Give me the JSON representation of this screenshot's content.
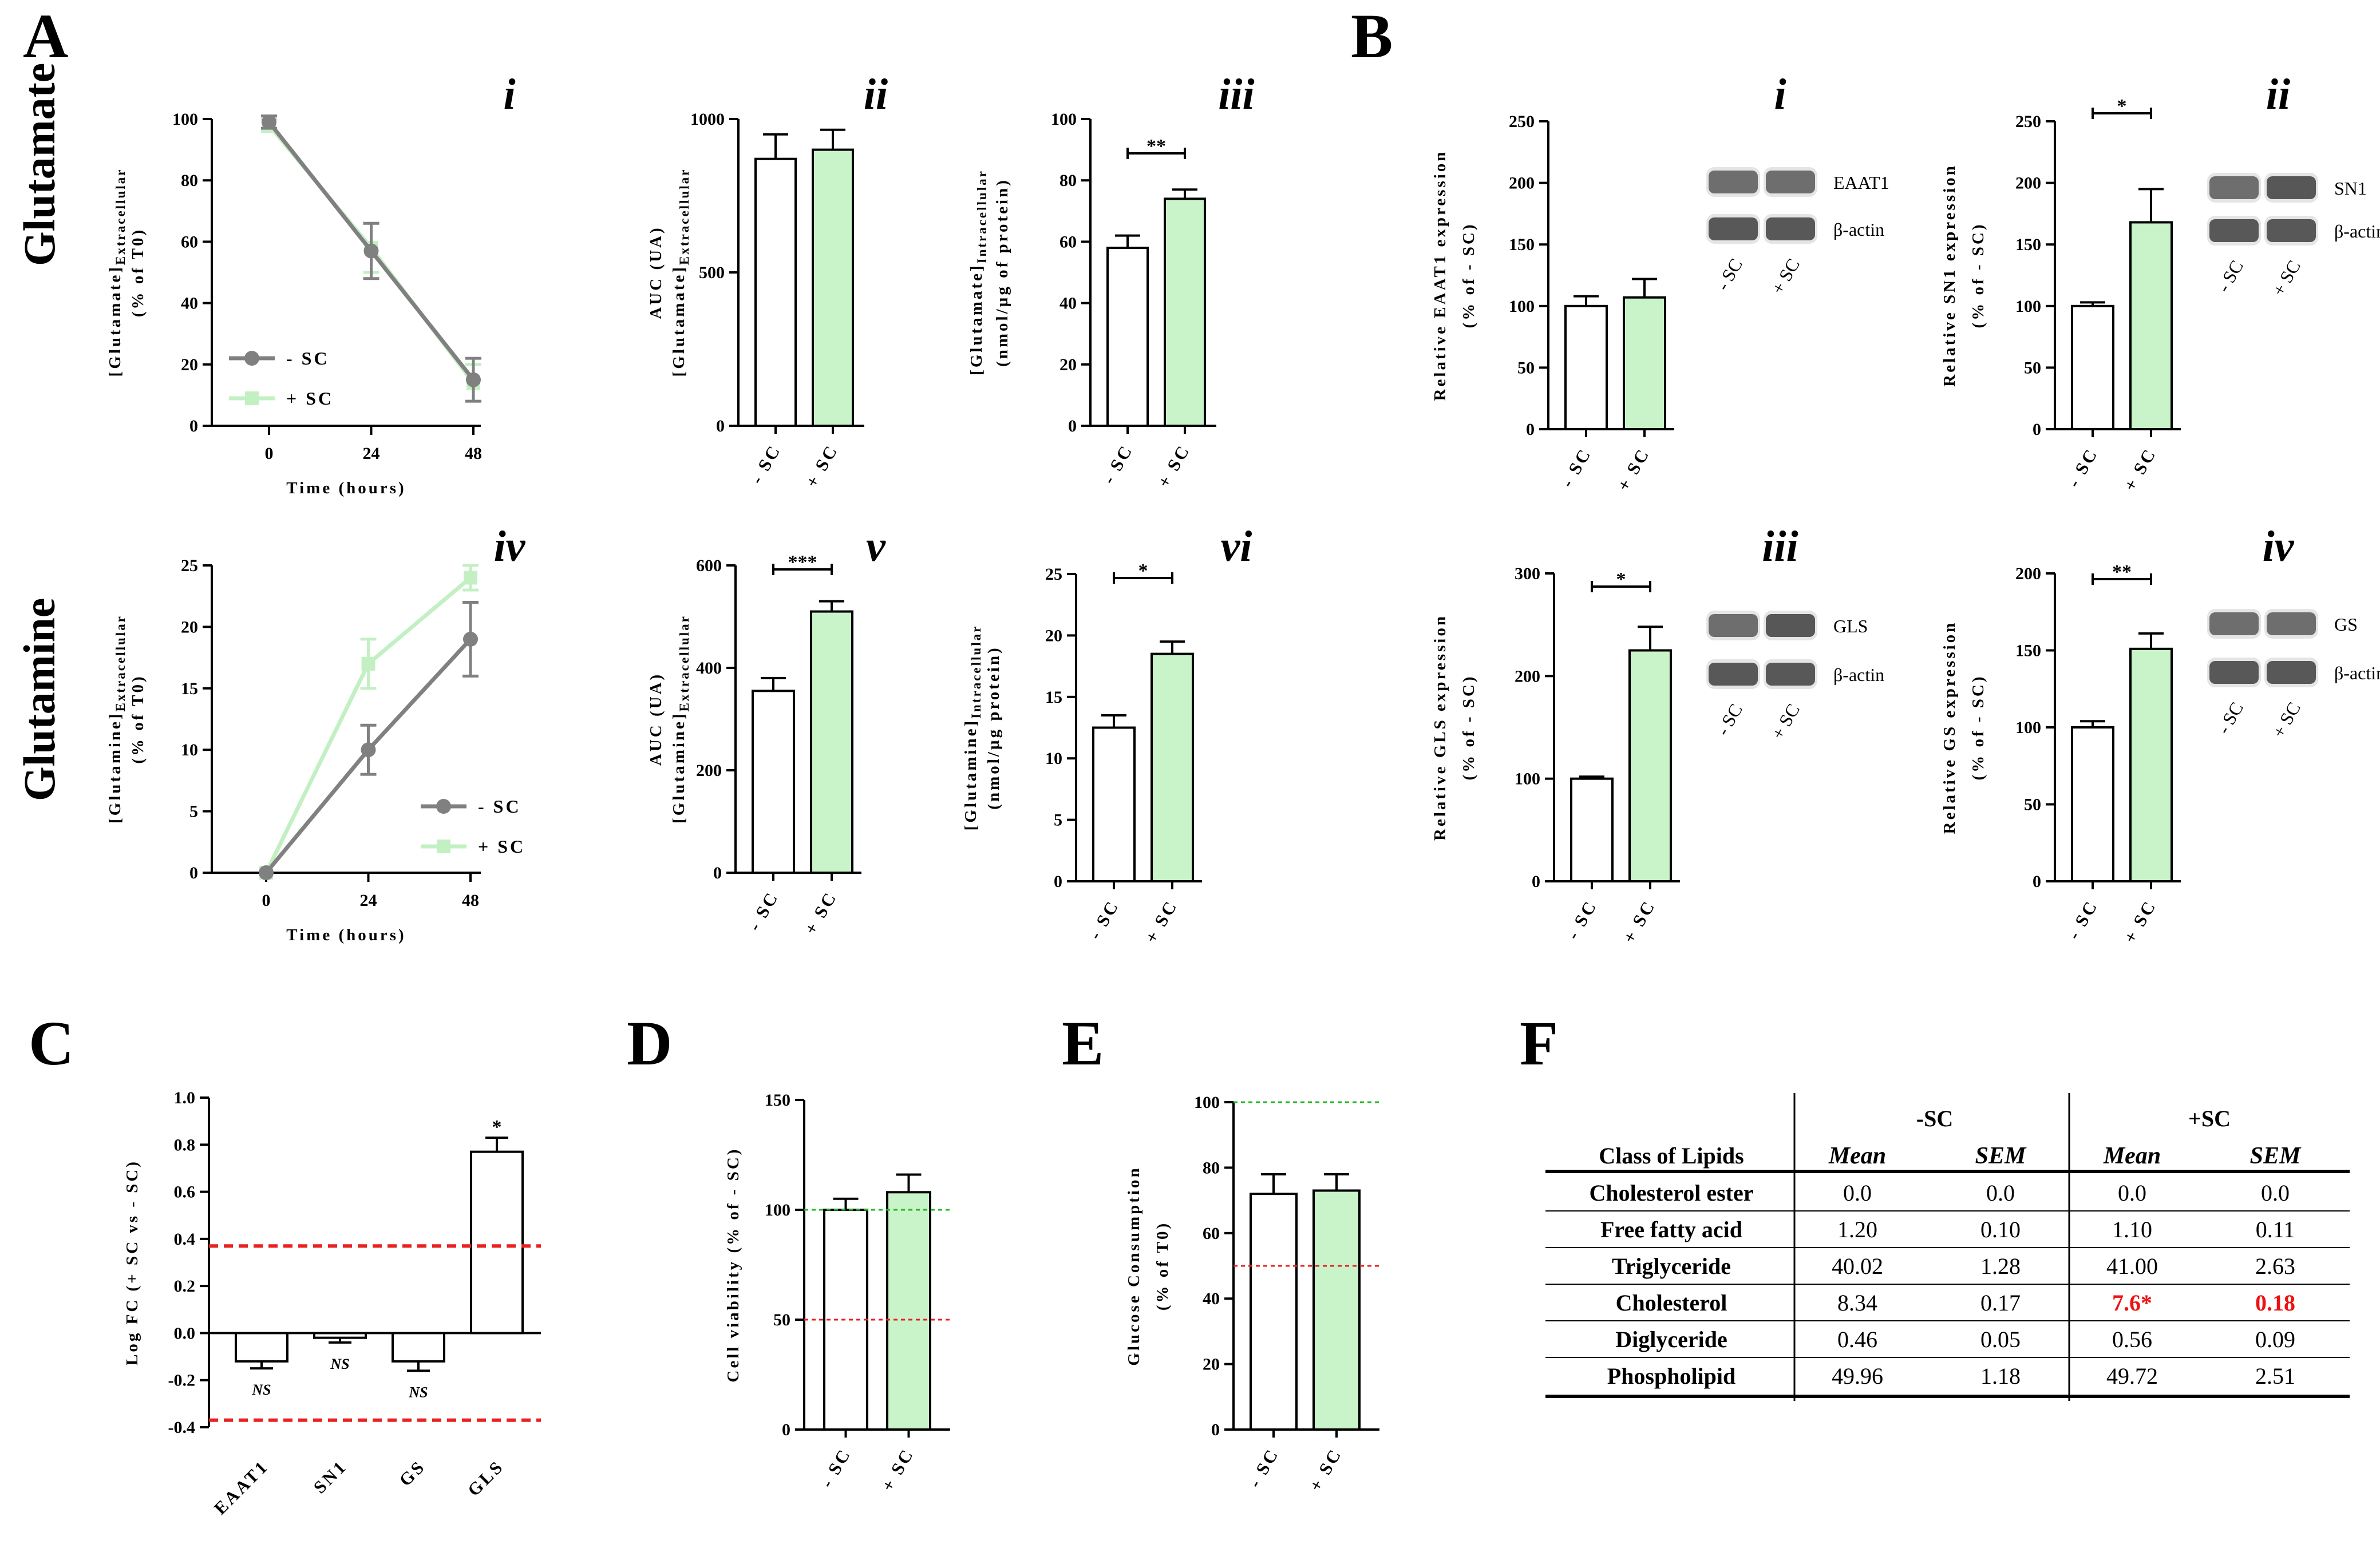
{
  "figure": {
    "panel_letters": [
      "A",
      "B",
      "C",
      "D",
      "E",
      "F"
    ],
    "row_titles": [
      "Glutamate",
      "Glutamine"
    ]
  },
  "colors": {
    "minus_sc": "#808080",
    "plus_sc": "#c3f0c3",
    "bar_plus": "#c9f3c9",
    "ref_red": "#e82020",
    "ref_green": "#22b822",
    "table_red": "#ee1111"
  },
  "chart_data": [
    {
      "id": "A-i",
      "type": "line",
      "roman": "i",
      "x": [
        0,
        24,
        48
      ],
      "series": [
        {
          "name": "- SC",
          "values": [
            99,
            57,
            15
          ],
          "errors": [
            2,
            9,
            7
          ]
        },
        {
          "name": "+ SC",
          "values": [
            98,
            58,
            14
          ],
          "errors": [
            2,
            8,
            6
          ]
        }
      ],
      "xlabel": "Time (hours)",
      "ylabel_main": "[Glutamate]",
      "ylabel_sub": "Extracellular",
      "ylabel_line2": "(% of T0)",
      "ylim": [
        0,
        100
      ],
      "yticks": [
        0,
        20,
        40,
        60,
        80,
        100
      ],
      "xticks": [
        "0",
        "24",
        "48"
      ],
      "legend": [
        "- SC",
        "+ SC"
      ]
    },
    {
      "id": "A-ii",
      "type": "bar",
      "roman": "ii",
      "categories": [
        "- SC",
        "+ SC"
      ],
      "values": [
        870,
        900
      ],
      "errors": [
        80,
        65
      ],
      "ylabel_main": "AUC (UA)",
      "ylabel_line2": "[Glutamate]",
      "ylabel_sub": "Extracellular",
      "ylim": [
        0,
        1000
      ],
      "yticks": [
        0,
        500,
        1000
      ]
    },
    {
      "id": "A-iii",
      "type": "bar",
      "roman": "iii",
      "categories": [
        "- SC",
        "+ SC"
      ],
      "values": [
        58,
        74
      ],
      "errors": [
        4,
        3
      ],
      "sig": "**",
      "ylabel_main": "[Glutamate]",
      "ylabel_sub": "Intracellular",
      "ylabel_line2": "(nmol/µg of protein)",
      "ylim": [
        0,
        100
      ],
      "yticks": [
        0,
        20,
        40,
        60,
        80,
        100
      ]
    },
    {
      "id": "A-iv",
      "type": "line",
      "roman": "iv",
      "x": [
        0,
        24,
        48
      ],
      "series": [
        {
          "name": "- SC",
          "values": [
            0,
            10,
            19
          ],
          "errors": [
            0,
            2,
            3
          ]
        },
        {
          "name": "+ SC",
          "values": [
            0,
            17,
            24
          ],
          "errors": [
            0,
            2,
            1
          ]
        }
      ],
      "xlabel": "Time (hours)",
      "ylabel_main": "[Glutamine]",
      "ylabel_sub": "Extracellular",
      "ylabel_line2": "(% of T0)",
      "ylim": [
        0,
        25
      ],
      "yticks": [
        0,
        5,
        10,
        15,
        20,
        25
      ],
      "xticks": [
        "0",
        "24",
        "48"
      ],
      "legend": [
        "- SC",
        "+ SC"
      ]
    },
    {
      "id": "A-v",
      "type": "bar",
      "roman": "v",
      "categories": [
        "- SC",
        "+ SC"
      ],
      "values": [
        355,
        510
      ],
      "errors": [
        25,
        20
      ],
      "sig": "***",
      "ylabel_main": "AUC (UA)",
      "ylabel_line2": "[Glutamine]",
      "ylabel_sub": "Extracellular",
      "ylim": [
        0,
        600
      ],
      "yticks": [
        0,
        200,
        400,
        600
      ]
    },
    {
      "id": "A-vi",
      "type": "bar",
      "roman": "vi",
      "categories": [
        "- SC",
        "+ SC"
      ],
      "values": [
        12.5,
        18.5
      ],
      "errors": [
        1,
        1
      ],
      "sig": "*",
      "ylabel_main": "[Glutamine]",
      "ylabel_sub": "Intracellular",
      "ylabel_line2": "(nmol/µg protein)",
      "ylim": [
        0,
        25
      ],
      "yticks": [
        0,
        5,
        10,
        15,
        20,
        25
      ]
    },
    {
      "id": "B-i",
      "type": "bar",
      "roman": "i",
      "categories": [
        "- SC",
        "+ SC"
      ],
      "values": [
        100,
        107
      ],
      "errors": [
        8,
        15
      ],
      "ylabel_main": "Relative EAAT1 expression",
      "ylabel_line2": "(% of - SC)",
      "ylim": [
        0,
        250
      ],
      "yticks": [
        0,
        50,
        100,
        150,
        200,
        250
      ],
      "blot": [
        "EAAT1",
        "β-actin"
      ],
      "blot_lanes": [
        "- SC",
        "+ SC"
      ]
    },
    {
      "id": "B-ii",
      "type": "bar",
      "roman": "ii",
      "categories": [
        "- SC",
        "+ SC"
      ],
      "values": [
        100,
        168
      ],
      "errors": [
        3,
        27
      ],
      "sig": "*",
      "ylabel_main": "Relative SN1 expression",
      "ylabel_line2": "(% of - SC)",
      "ylim": [
        0,
        250
      ],
      "yticks": [
        0,
        50,
        100,
        150,
        200,
        250
      ],
      "blot": [
        "SN1",
        "β-actin"
      ],
      "blot_lanes": [
        "- SC",
        "+ SC"
      ]
    },
    {
      "id": "B-iii",
      "type": "bar",
      "roman": "iii",
      "categories": [
        "- SC",
        "+ SC"
      ],
      "values": [
        100,
        225
      ],
      "errors": [
        2,
        23
      ],
      "sig": "*",
      "ylabel_main": "Relative GLS expression",
      "ylabel_line2": "(% of - SC)",
      "ylim": [
        0,
        300
      ],
      "yticks": [
        0,
        100,
        200,
        300
      ],
      "blot": [
        "GLS",
        "β-actin"
      ],
      "blot_lanes": [
        "- SC",
        "+ SC"
      ]
    },
    {
      "id": "B-iv",
      "type": "bar",
      "roman": "iv",
      "categories": [
        "- SC",
        "+ SC"
      ],
      "values": [
        100,
        151
      ],
      "errors": [
        4,
        10
      ],
      "sig": "**",
      "ylabel_main": "Relative GS expression",
      "ylabel_line2": "(% of - SC)",
      "ylim": [
        0,
        200
      ],
      "yticks": [
        0,
        50,
        100,
        150,
        200
      ],
      "blot": [
        "GS",
        "β-actin"
      ],
      "blot_lanes": [
        "- SC",
        "+ SC"
      ]
    },
    {
      "id": "C",
      "type": "bar",
      "categories": [
        "EAAT1",
        "SN1",
        "GS",
        "GLS"
      ],
      "values": [
        -0.12,
        -0.02,
        -0.12,
        0.77
      ],
      "errors": [
        0.03,
        0.02,
        0.04,
        0.06
      ],
      "annotations": [
        "NS",
        "NS",
        "NS",
        "*"
      ],
      "ylabel": "Log FC (+ SC vs - SC)",
      "ylim": [
        -0.4,
        1.0
      ],
      "yticks": [
        "-0.4",
        "-0.2",
        "0.0",
        "0.2",
        "0.4",
        "0.6",
        "0.8",
        "1.0"
      ],
      "reference_lines": [
        0.37,
        -0.37
      ]
    },
    {
      "id": "D",
      "type": "bar",
      "categories": [
        "- SC",
        "+ SC"
      ],
      "values": [
        100,
        108
      ],
      "errors": [
        5,
        8
      ],
      "ylabel": "Cell viability (% of - SC)",
      "ylim": [
        0,
        150
      ],
      "yticks": [
        0,
        50,
        100,
        150
      ],
      "reference_lines": [
        {
          "value": 100,
          "color": "green"
        },
        {
          "value": 50,
          "color": "red"
        }
      ]
    },
    {
      "id": "E",
      "type": "bar",
      "categories": [
        "- SC",
        "+ SC"
      ],
      "values": [
        72,
        73
      ],
      "errors": [
        6,
        5
      ],
      "ylabel_main": "Glucose Consumption",
      "ylabel_line2": "(% of T0)",
      "ylim": [
        0,
        100
      ],
      "yticks": [
        0,
        20,
        40,
        60,
        80,
        100
      ],
      "reference_lines": [
        {
          "value": 100,
          "color": "green"
        },
        {
          "value": 50,
          "color": "red"
        }
      ]
    },
    {
      "id": "F",
      "type": "table",
      "group_headers": [
        "-SC",
        "+SC"
      ],
      "columns": [
        "Class of Lipids",
        "Mean",
        "SEM",
        "Mean",
        "SEM"
      ],
      "rows": [
        [
          "Cholesterol ester",
          "0.0",
          "0.0",
          "0.0",
          "0.0"
        ],
        [
          "Free fatty acid",
          "1.20",
          "0.10",
          "1.10",
          "0.11"
        ],
        [
          "Triglyceride",
          "40.02",
          "1.28",
          "41.00",
          "2.63"
        ],
        [
          "Cholesterol",
          "8.34",
          "0.17",
          "7.6*",
          "0.18"
        ],
        [
          "Diglyceride",
          "0.46",
          "0.05",
          "0.56",
          "0.09"
        ],
        [
          "Phospholipid",
          "49.96",
          "1.18",
          "49.72",
          "2.51"
        ]
      ],
      "highlight_cells": [
        [
          3,
          3
        ],
        [
          3,
          4
        ]
      ]
    }
  ]
}
